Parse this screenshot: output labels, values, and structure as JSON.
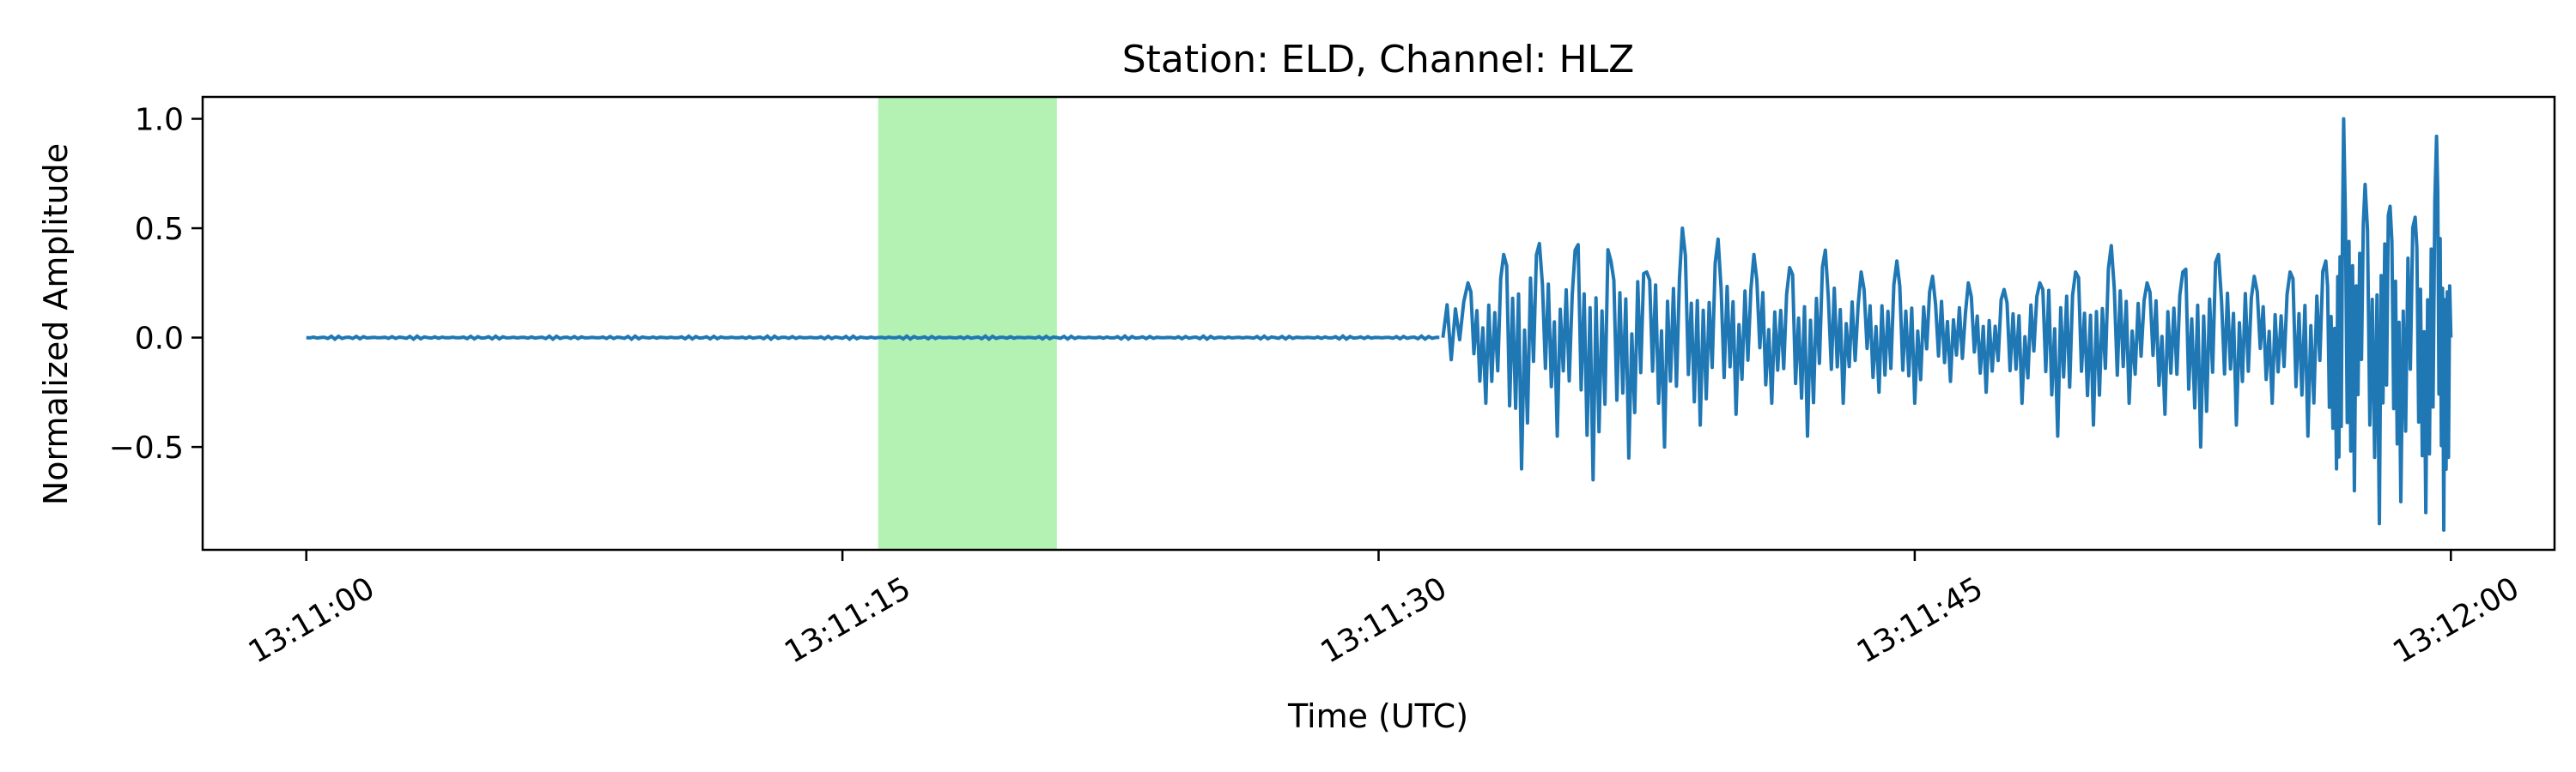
{
  "chart_data": {
    "type": "line",
    "title": "Station: ELD, Channel: HLZ",
    "xlabel": "Time (UTC)",
    "ylabel": "Normalized Amplitude",
    "x_ticks": [
      "13:11:00",
      "13:11:15",
      "13:11:30",
      "13:11:45",
      "13:12:00"
    ],
    "x_tick_values_s": [
      0,
      15,
      30,
      45,
      60
    ],
    "xlim_s": [
      -2.9,
      62.9
    ],
    "y_ticks": [
      "1.0",
      "0.5",
      "0.0",
      "−0.5"
    ],
    "y_tick_values": [
      1.0,
      0.5,
      0.0,
      -0.5
    ],
    "ylim": [
      -0.97,
      1.1
    ],
    "highlight_span_s": [
      16.0,
      21.0
    ],
    "highlight_color": "#b3f2b3",
    "line_color": "#1f77b4",
    "grid": false,
    "legend": "none",
    "series": [
      {
        "x_s": [
          0,
          5,
          10,
          15,
          20,
          25,
          30,
          31.8,
          32.5,
          33,
          33.5,
          34,
          34.5,
          35,
          35.5,
          36,
          36.5,
          37,
          37.5,
          38,
          38.5,
          39,
          39.5,
          40,
          40.5,
          41,
          41.5,
          42,
          42.5,
          43,
          43.5,
          44,
          44.5,
          45,
          45.5,
          46,
          46.5,
          47,
          47.5,
          48,
          48.5,
          49,
          49.5,
          50,
          50.5,
          51,
          51.5,
          52,
          52.5,
          53,
          53.5,
          54,
          54.5,
          55,
          55.5,
          56,
          56.5,
          56.8,
          57,
          57.3,
          57.6,
          58,
          58.3,
          58.6,
          59,
          59.3,
          59.6,
          59.8,
          60
        ],
        "y": [
          0.0,
          0.0,
          0.0,
          0.0,
          0.0,
          0.0,
          0.0,
          0.0,
          0.25,
          -0.3,
          0.38,
          -0.6,
          0.43,
          -0.45,
          0.4,
          -0.65,
          0.35,
          -0.55,
          0.3,
          -0.5,
          0.5,
          -0.4,
          0.45,
          -0.35,
          0.38,
          -0.3,
          0.32,
          -0.45,
          0.4,
          -0.3,
          0.3,
          -0.25,
          0.35,
          -0.3,
          0.28,
          -0.2,
          0.25,
          -0.25,
          0.22,
          -0.3,
          0.25,
          -0.45,
          0.3,
          -0.4,
          0.42,
          -0.3,
          0.25,
          -0.35,
          0.3,
          -0.5,
          0.38,
          -0.4,
          0.28,
          -0.3,
          0.3,
          -0.45,
          0.35,
          -0.6,
          1.0,
          -0.7,
          0.7,
          -0.85,
          0.6,
          -0.75,
          0.55,
          -0.8,
          0.92,
          -0.88,
          0.0
        ]
      }
    ]
  }
}
